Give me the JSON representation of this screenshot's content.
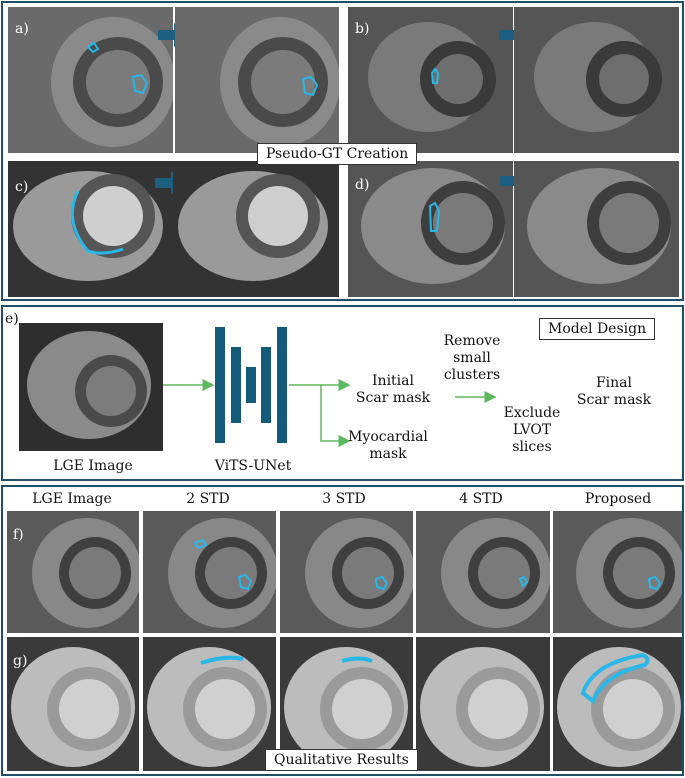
{
  "pseudo_gt": {
    "title": "Pseudo-GT Creation",
    "panels": [
      {
        "letter": "a)"
      },
      {
        "letter": "b)"
      },
      {
        "letter": "c)"
      },
      {
        "letter": "d)"
      }
    ]
  },
  "model_design": {
    "letter": "e)",
    "title": "Model Design",
    "input_label": "LGE Image",
    "network_label": "ViTS-UNet",
    "initial_mask_label": "Initial\nScar mask",
    "myocardial_mask_label": "Myocardial\nmask",
    "step1_label": "Remove\nsmall\nclusters",
    "step2_label": "Exclude\nLVOT\nslices",
    "final_mask_label": "Final\nScar mask"
  },
  "results": {
    "title": "Qualitative Results",
    "columns": [
      "LGE Image",
      "2 STD",
      "3 STD",
      "4 STD",
      "Proposed"
    ],
    "rows": [
      {
        "letter": "f)"
      },
      {
        "letter": "g)"
      }
    ]
  },
  "colors": {
    "frame": "#1f4e66",
    "arrow": "#1d5f80",
    "network": "#135b79",
    "flow_arrow": "#5cb85c",
    "contour": "#27b7e8"
  }
}
